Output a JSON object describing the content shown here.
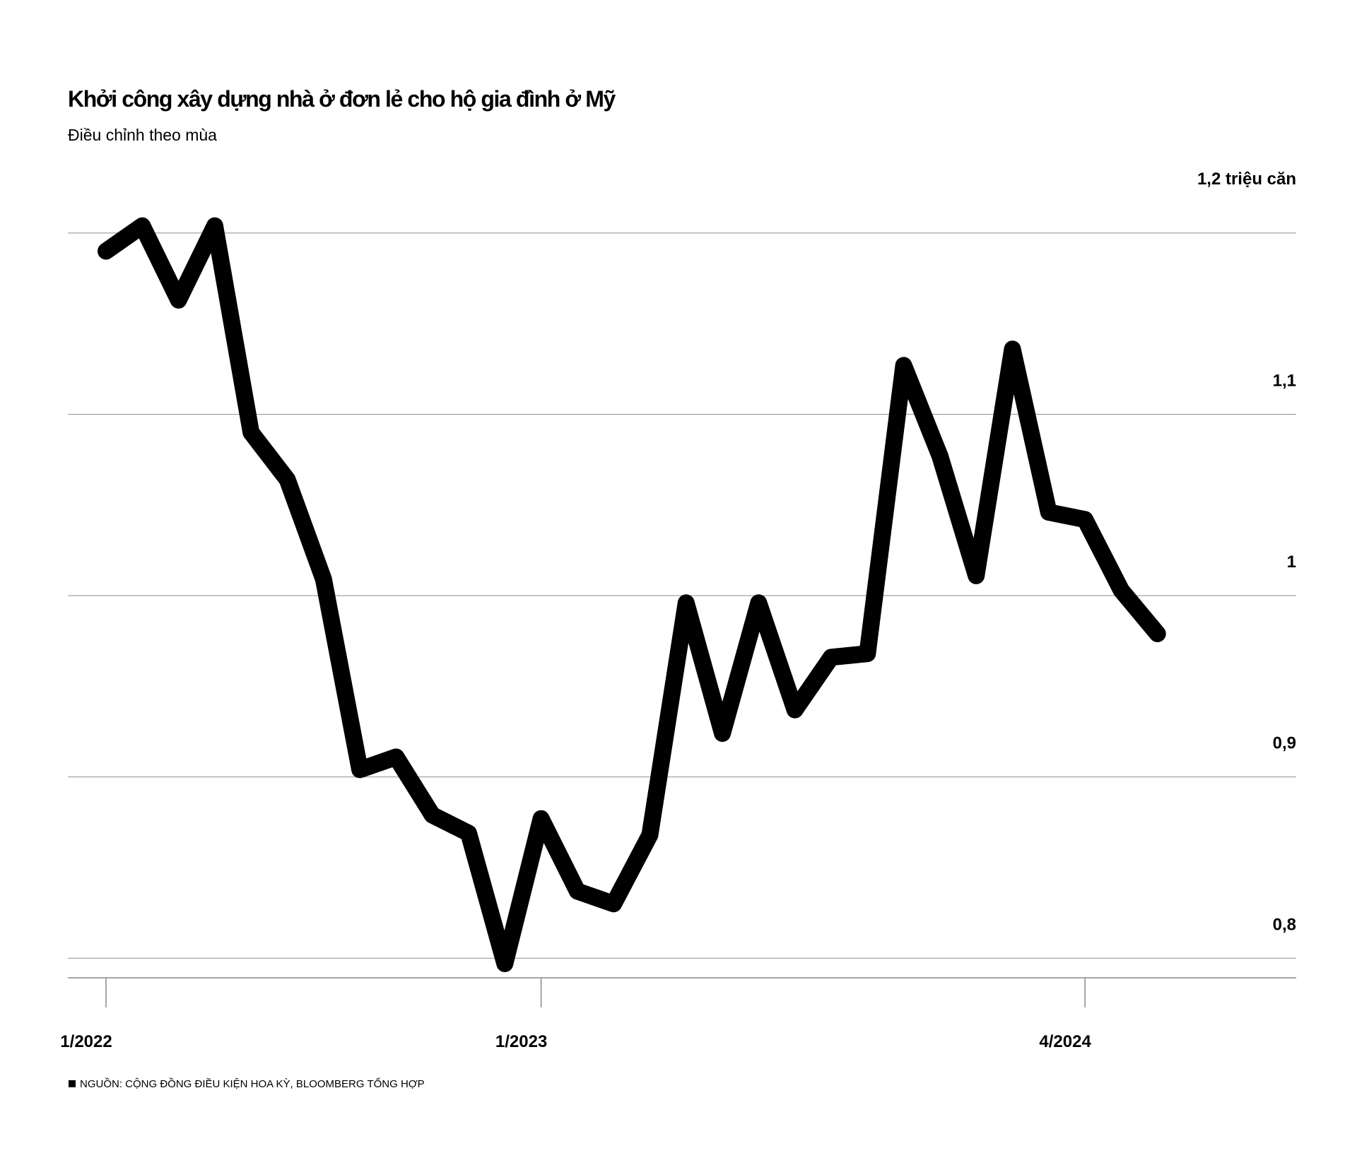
{
  "title": "Khởi công xây dựng nhà ở đơn lẻ cho hộ gia đình ở Mỹ",
  "subtitle": "Điều chỉnh theo mùa",
  "source": "NGUỒN: CỘNG ĐỒNG ĐIỀU KIỆN HOA KỲ, BLOOMBERG TỔNG HỢP",
  "chart_data": {
    "type": "line",
    "title": "Khởi công xây dựng nhà ở đơn lẻ cho hộ gia đình ở Mỹ",
    "subtitle": "Điều chỉnh theo mùa",
    "ylabel": "1,2 triệu căn",
    "ylim": [
      0.79,
      1.205
    ],
    "y_ticks": [
      0.8,
      0.9,
      1.0,
      1.1,
      1.2
    ],
    "y_tick_labels": [
      "0,8",
      "0,9",
      "1",
      "1,1",
      ""
    ],
    "x_tick_labels": [
      "1/2022",
      "1/2023",
      "4/2024"
    ],
    "x_tick_positions": [
      "2022-01",
      "2023-01",
      "2024-04"
    ],
    "grid": "horizontal",
    "axis_side": "right",
    "line_color": "#000000",
    "grid_color": "#999999",
    "series": [
      {
        "values": [
          {
            "x": "2022-01",
            "y": 1.19
          },
          {
            "x": "2022-02",
            "y": 1.204
          },
          {
            "x": "2022-03",
            "y": 1.163
          },
          {
            "x": "2022-04",
            "y": 1.204
          },
          {
            "x": "2022-05",
            "y": 1.09
          },
          {
            "x": "2022-06",
            "y": 1.064
          },
          {
            "x": "2022-07",
            "y": 1.009
          },
          {
            "x": "2022-08",
            "y": 0.904
          },
          {
            "x": "2022-09",
            "y": 0.911
          },
          {
            "x": "2022-10",
            "y": 0.879
          },
          {
            "x": "2022-11",
            "y": 0.869
          },
          {
            "x": "2022-12",
            "y": 0.797
          },
          {
            "x": "2023-01",
            "y": 0.877
          },
          {
            "x": "2023-02",
            "y": 0.837
          },
          {
            "x": "2023-03",
            "y": 0.83
          },
          {
            "x": "2023-04",
            "y": 0.868
          },
          {
            "x": "2023-05",
            "y": 0.996
          },
          {
            "x": "2023-06",
            "y": 0.924
          },
          {
            "x": "2023-07",
            "y": 0.996
          },
          {
            "x": "2023-08",
            "y": 0.937
          },
          {
            "x": "2023-09",
            "y": 0.966
          },
          {
            "x": "2023-10",
            "y": 0.968
          },
          {
            "x": "2023-11",
            "y": 1.127
          },
          {
            "x": "2023-12",
            "y": 1.077
          },
          {
            "x": "2024-01",
            "y": 1.011
          },
          {
            "x": "2024-02",
            "y": 1.136
          },
          {
            "x": "2024-03",
            "y": 1.046
          },
          {
            "x": "2024-04",
            "y": 1.042
          },
          {
            "x": "2024-05",
            "y": 1.003
          },
          {
            "x": "2024-06",
            "y": 0.979
          }
        ]
      }
    ]
  }
}
